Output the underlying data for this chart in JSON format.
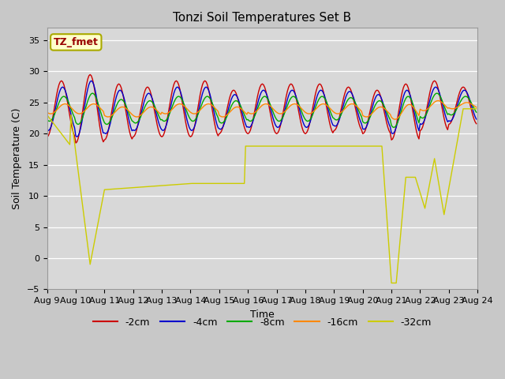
{
  "title": "Tonzi Soil Temperatures Set B",
  "xlabel": "Time",
  "ylabel": "Soil Temperature (C)",
  "ylim": [
    -5,
    37
  ],
  "yticks": [
    -5,
    0,
    5,
    10,
    15,
    20,
    25,
    30,
    35
  ],
  "plot_bg_color": "#d8d8d8",
  "fig_bg_color": "#c8c8c8",
  "legend_label": "TZ_fmet",
  "legend_bg": "#ffffcc",
  "legend_border": "#aaaa00",
  "series_colors": [
    "#cc0000",
    "#0000cc",
    "#00aa00",
    "#ff8800",
    "#cccc00"
  ],
  "series_labels": [
    "-2cm",
    "-4cm",
    "-8cm",
    "-16cm",
    "-32cm"
  ],
  "x_tick_labels": [
    "Aug 9",
    "Aug 10",
    "Aug 11",
    "Aug 12",
    "Aug 13",
    "Aug 14",
    "Aug 15",
    "Aug 16",
    "Aug 17",
    "Aug 18",
    "Aug 19",
    "Aug 20",
    "Aug 21",
    "Aug 22",
    "Aug 23",
    "Aug 24"
  ],
  "x_ticks": [
    0,
    24,
    48,
    72,
    96,
    120,
    144,
    168,
    192,
    216,
    240,
    264,
    288,
    312,
    336,
    360
  ]
}
